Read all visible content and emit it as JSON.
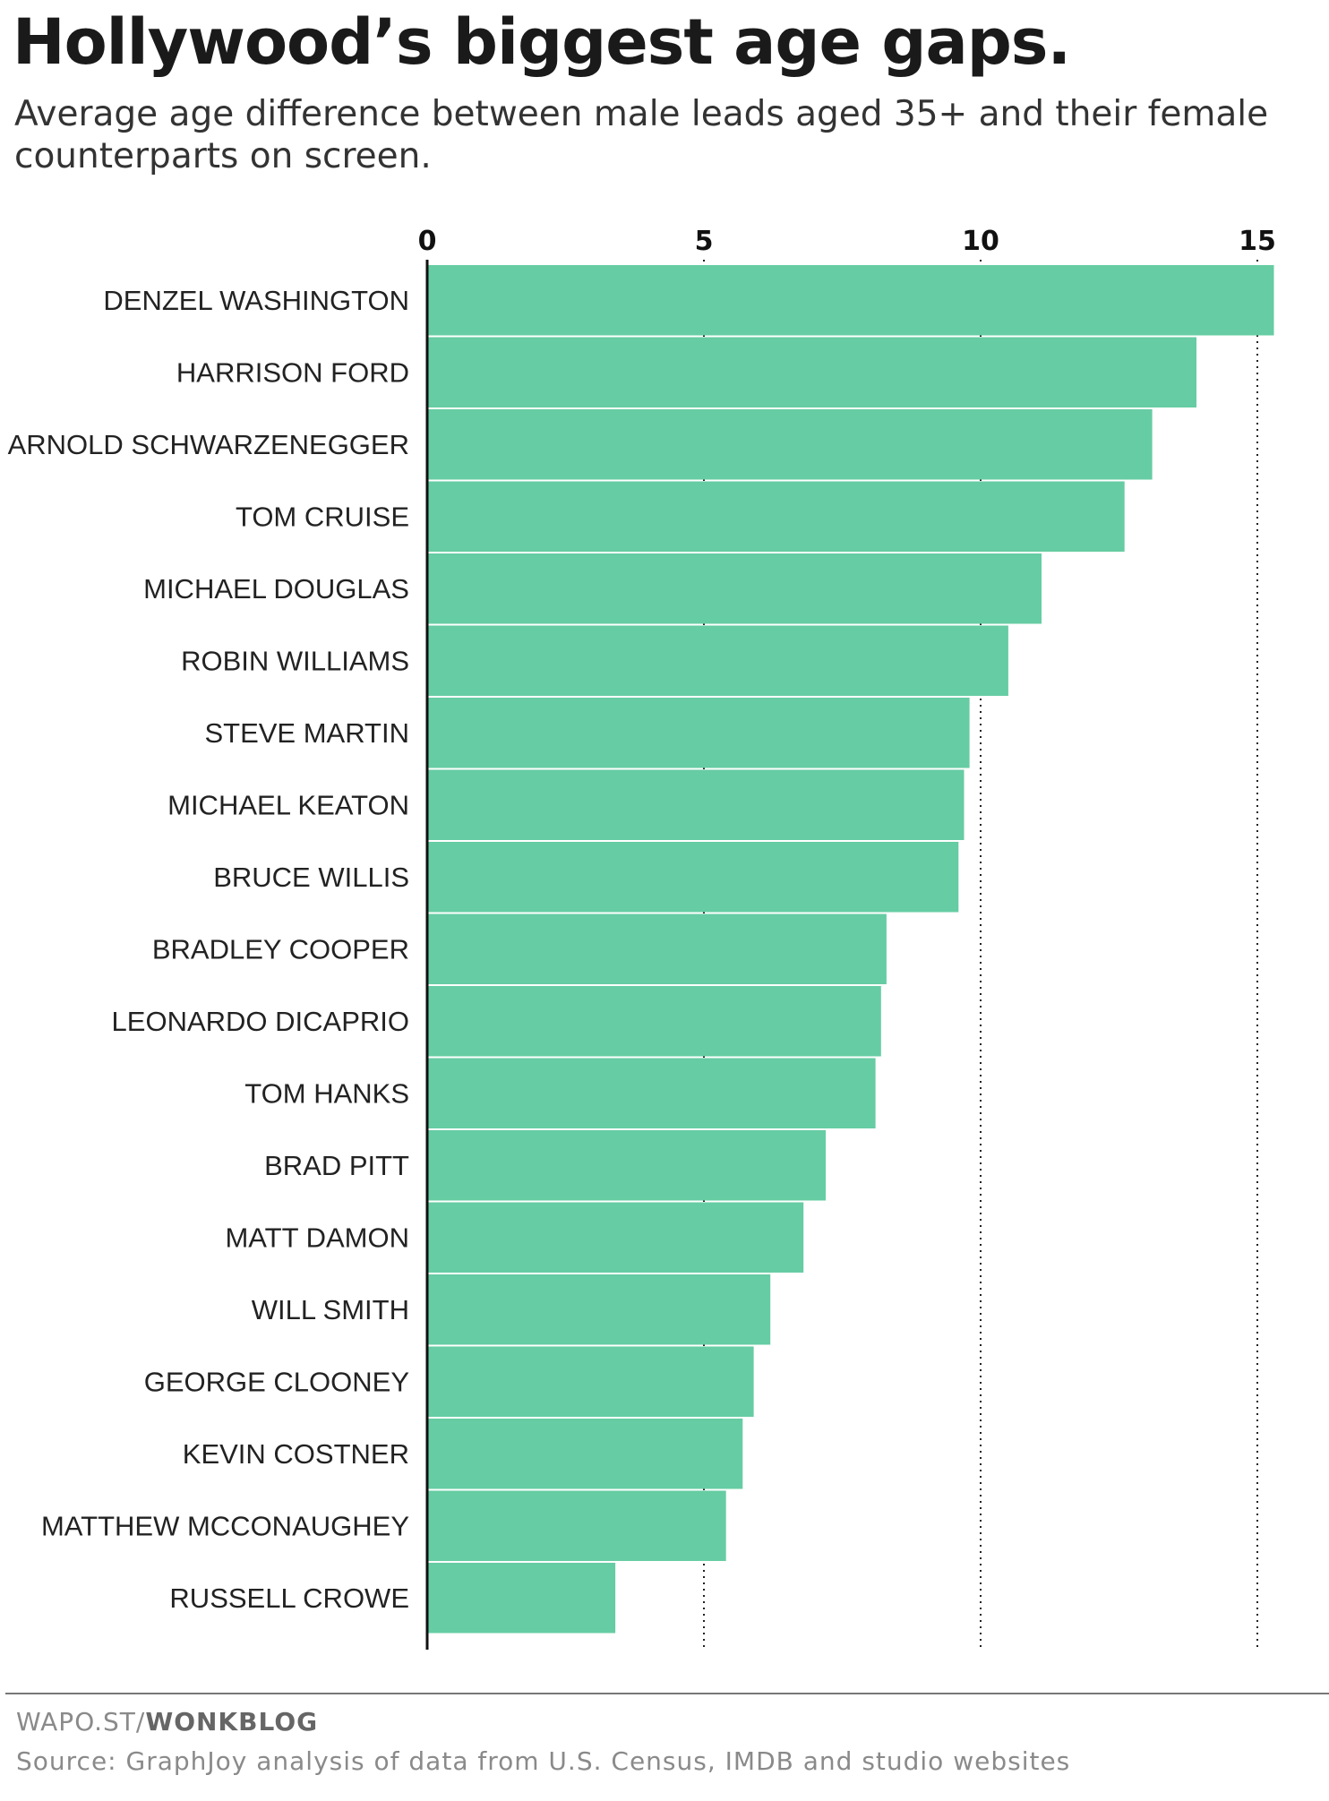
{
  "chart_data": {
    "type": "bar",
    "orientation": "horizontal",
    "title": "Hollywood’s biggest age gaps.",
    "subtitle": "Average age difference between male leads aged 35+ and their female counterparts on screen.",
    "xlabel": "",
    "ylabel": "",
    "xlim": [
      0,
      15
    ],
    "x_ticks": [
      0,
      5,
      10,
      15
    ],
    "grid": "dotted vertical at 5, 10, 15",
    "categories": [
      "DENZEL WASHINGTON",
      "HARRISON FORD",
      "ARNOLD SCHWARZENEGGER",
      "TOM CRUISE",
      "MICHAEL DOUGLAS",
      "ROBIN WILLIAMS",
      "STEVE MARTIN",
      "MICHAEL KEATON",
      "BRUCE WILLIS",
      "BRADLEY COOPER",
      "LEONARDO DICAPRIO",
      "TOM HANKS",
      "BRAD PITT",
      "MATT DAMON",
      "WILL SMITH",
      "GEORGE CLOONEY",
      "KEVIN COSTNER",
      "MATTHEW MCCONAUGHEY",
      "RUSSELL CROWE"
    ],
    "values": [
      15.3,
      13.9,
      13.1,
      12.6,
      11.1,
      10.5,
      9.8,
      9.7,
      9.6,
      8.3,
      8.2,
      8.1,
      7.2,
      6.8,
      6.2,
      5.9,
      5.7,
      5.4,
      3.4
    ]
  },
  "colors": {
    "bar": "#66cca3",
    "axis": "#111111",
    "grid": "#222222"
  },
  "footer": {
    "credit_prefix": "WAPO.ST/",
    "credit_bold": "WONKBLOG",
    "source": "Source: GraphJoy analysis of data from U.S. Census, IMDB and studio websites"
  }
}
